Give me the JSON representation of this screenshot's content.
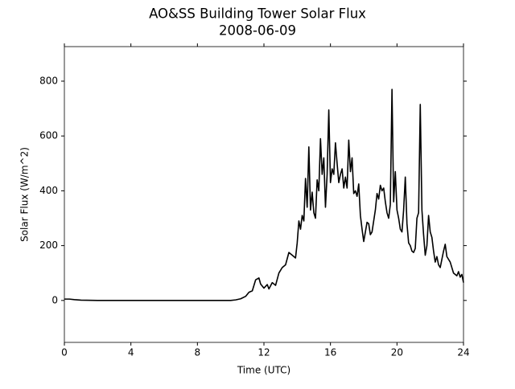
{
  "chart_data": {
    "type": "line",
    "title": "AO&SS Building Tower Solar Flux",
    "subtitle": "2008-06-09",
    "x_label": "Time (UTC)",
    "y_label": "Solar Flux (W/m^2)",
    "color": "#000000",
    "xlim": [
      0,
      24
    ],
    "xticks": [
      0,
      4,
      8,
      12,
      16,
      20,
      24
    ],
    "ylim": [
      -153,
      926
    ],
    "yticks": [
      0,
      200,
      400,
      600,
      800
    ],
    "x": [
      0,
      0.3,
      0.6,
      1,
      2,
      4,
      6,
      8,
      10,
      10.3,
      10.6,
      10.9,
      11.1,
      11.3,
      11.5,
      11.7,
      11.8,
      12,
      12.2,
      12.3,
      12.5,
      12.7,
      12.9,
      13.1,
      13.3,
      13.5,
      13.7,
      13.9,
      14.0,
      14.1,
      14.2,
      14.3,
      14.4,
      14.5,
      14.6,
      14.7,
      14.8,
      14.9,
      15.0,
      15.1,
      15.2,
      15.3,
      15.4,
      15.5,
      15.6,
      15.7,
      15.8,
      15.9,
      16.0,
      16.1,
      16.2,
      16.3,
      16.4,
      16.5,
      16.6,
      16.7,
      16.8,
      16.9,
      17.0,
      17.1,
      17.2,
      17.3,
      17.4,
      17.5,
      17.6,
      17.7,
      17.8,
      17.9,
      18.0,
      18.1,
      18.2,
      18.3,
      18.4,
      18.5,
      18.7,
      18.8,
      18.9,
      19.0,
      19.1,
      19.2,
      19.3,
      19.4,
      19.5,
      19.6,
      19.7,
      19.8,
      19.9,
      20.0,
      20.1,
      20.2,
      20.3,
      20.4,
      20.5,
      20.6,
      20.7,
      20.8,
      20.9,
      21.0,
      21.1,
      21.2,
      21.3,
      21.4,
      21.5,
      21.6,
      21.7,
      21.8,
      21.9,
      22.0,
      22.1,
      22.2,
      22.3,
      22.4,
      22.5,
      22.6,
      22.7,
      22.8,
      22.9,
      23.0,
      23.2,
      23.4,
      23.6,
      23.7,
      23.8,
      23.9,
      24.0
    ],
    "values": [
      5,
      5,
      3,
      1,
      0,
      0,
      0,
      0,
      0,
      2,
      6,
      15,
      30,
      35,
      75,
      82,
      60,
      45,
      58,
      42,
      65,
      55,
      100,
      120,
      130,
      175,
      165,
      155,
      210,
      290,
      260,
      310,
      290,
      445,
      340,
      560,
      330,
      395,
      320,
      300,
      440,
      400,
      590,
      460,
      520,
      340,
      460,
      695,
      430,
      480,
      460,
      575,
      500,
      430,
      460,
      480,
      410,
      450,
      410,
      585,
      470,
      520,
      390,
      400,
      380,
      425,
      310,
      260,
      215,
      250,
      285,
      280,
      240,
      250,
      330,
      390,
      370,
      420,
      400,
      410,
      360,
      320,
      300,
      350,
      770,
      360,
      470,
      330,
      300,
      260,
      250,
      330,
      450,
      280,
      210,
      200,
      180,
      175,
      190,
      300,
      320,
      715,
      330,
      240,
      165,
      200,
      310,
      250,
      230,
      180,
      140,
      160,
      130,
      120,
      150,
      180,
      205,
      160,
      140,
      100,
      90,
      105,
      85,
      95,
      65
    ]
  }
}
